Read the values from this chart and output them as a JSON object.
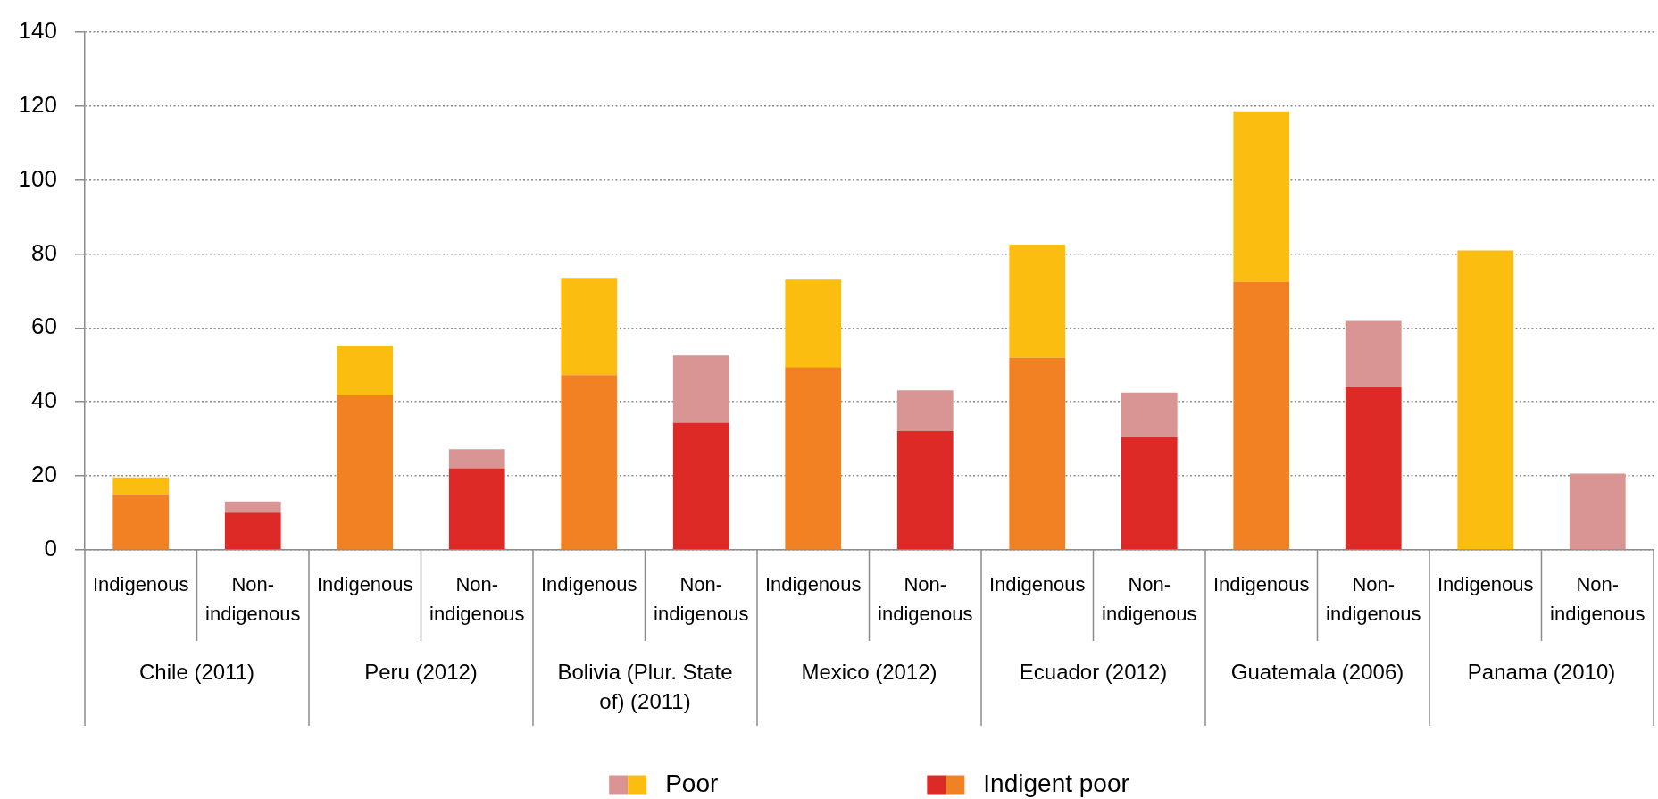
{
  "chart_data": {
    "type": "bar",
    "stacked": true,
    "categories": [
      "Indigenous",
      "Non-indigenous",
      "Indigenous",
      "Non-indigenous",
      "Indigenous",
      "Non-indigenous",
      "Indigenous",
      "Non-indigenous",
      "Indigenous",
      "Non-indigenous",
      "Indigenous",
      "Non-indigenous",
      "Indigenous",
      "Non-indigenous"
    ],
    "series": [
      {
        "name": "Indigent poor",
        "colors": [
          "#f28123",
          "#de2a26",
          "#f28123",
          "#de2a26",
          "#f28123",
          "#de2a26",
          "#f28123",
          "#de2a26",
          "#f28123",
          "#de2a26",
          "#f28123",
          "#de2a26",
          "#f28123",
          "#de2a26"
        ],
        "values": [
          14.9,
          10.1,
          41.7,
          22.1,
          47.2,
          34.4,
          49.4,
          32.1,
          51.9,
          30.5,
          72.4,
          44,
          null,
          null
        ]
      },
      {
        "name": "Poor",
        "colors": [
          "#fbbd10",
          "#d99594",
          "#fbbd10",
          "#d99594",
          "#fbbd10",
          "#d99594",
          "#fbbd10",
          "#d99594",
          "#fbbd10",
          "#d99594",
          "#fbbd10",
          "#d99594",
          "#fbbd10",
          "#d99594"
        ],
        "values": [
          4.7,
          3,
          13.3,
          5.1,
          26.3,
          18.1,
          23.6,
          11,
          30.6,
          12,
          46.1,
          17.9,
          80.9,
          20.6
        ]
      }
    ],
    "ylim": [
      0,
      140
    ],
    "yticks": [
      0,
      20,
      40,
      60,
      80,
      100,
      120,
      140
    ],
    "grid": "y",
    "legend": "bottom",
    "annotations": [
      "Chile (2011)",
      "Peru (2012)",
      "Bolivia (Plur. State of) (2011)",
      "Mexico (2012)",
      "Ecuador (2012)",
      "Guatemala (2006)",
      "Panama (2010)"
    ]
  }
}
